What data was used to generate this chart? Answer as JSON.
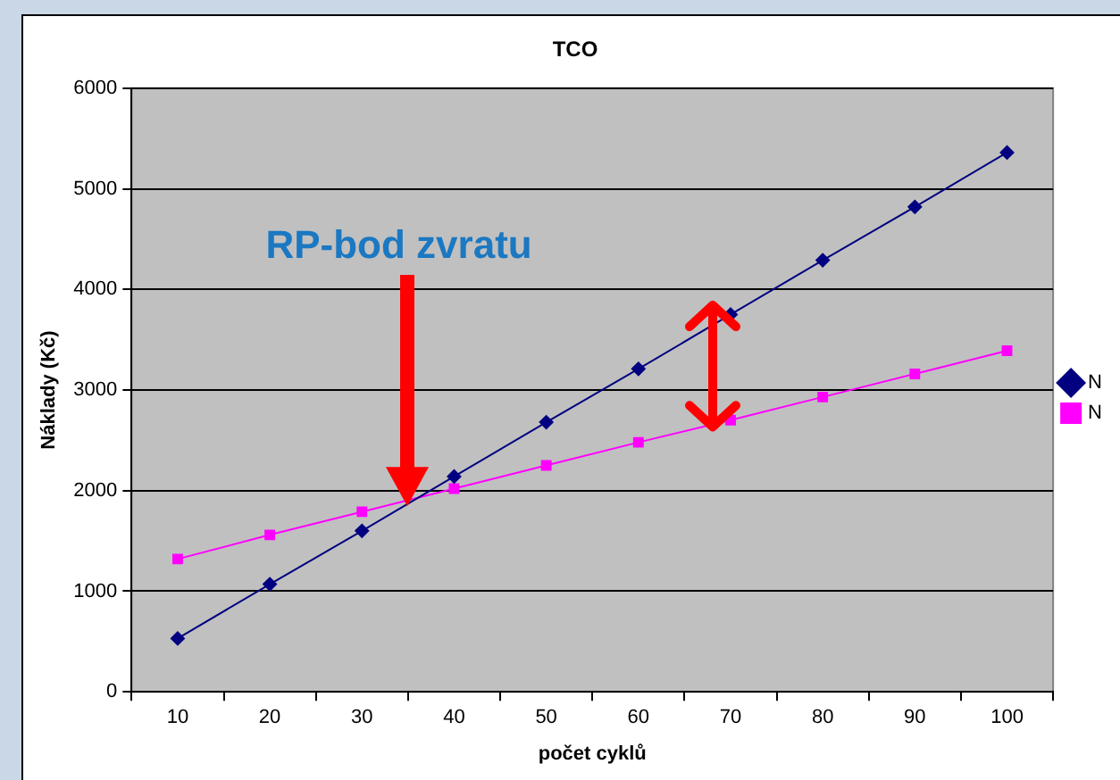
{
  "chart_data": {
    "type": "line",
    "title": "TCO",
    "xlabel": "počet cyklů",
    "ylabel": "Náklady (Kč)",
    "categories": [
      "10",
      "20",
      "30",
      "40",
      "50",
      "60",
      "70",
      "80",
      "90",
      "100"
    ],
    "series": [
      {
        "name": "N",
        "color": "#000080",
        "marker": "diamond",
        "values": [
          530,
          1070,
          1600,
          2140,
          2680,
          3210,
          3750,
          4290,
          4820,
          5360
        ]
      },
      {
        "name": "N",
        "color": "#ff00ff",
        "marker": "square",
        "values": [
          1320,
          1560,
          1790,
          2020,
          2250,
          2480,
          2700,
          2930,
          3160,
          3390
        ]
      }
    ],
    "ylim": [
      0,
      6000
    ],
    "yticks": [
      0,
      1000,
      2000,
      3000,
      4000,
      5000,
      6000
    ],
    "grid": "y",
    "legend": "right",
    "line_style": "solid",
    "annotations": [
      "RP-bod zvratu"
    ]
  }
}
